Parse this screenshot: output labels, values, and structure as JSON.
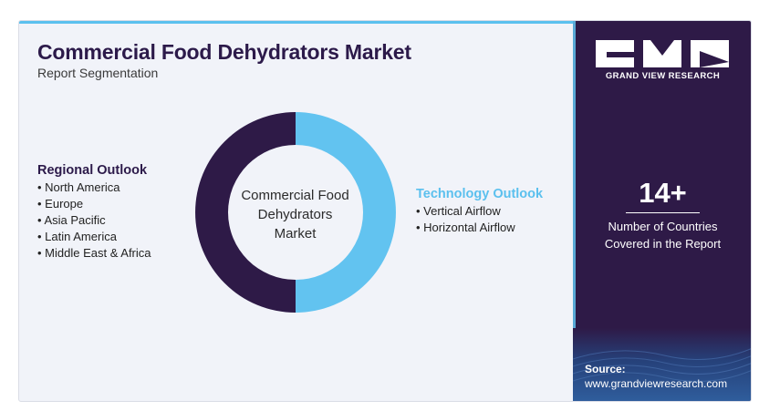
{
  "header": {
    "title": "Commercial Food Dehydrators Market",
    "subtitle": "Report Segmentation"
  },
  "regional": {
    "heading": "Regional Outlook",
    "items": [
      "North America",
      "Europe",
      "Asia Pacific",
      "Latin America",
      "Middle East & Africa"
    ]
  },
  "technology": {
    "heading": "Technology Outlook",
    "items": [
      "Vertical Airflow",
      "Horizontal Airflow"
    ]
  },
  "donut": {
    "center_label": [
      "Commercial Food",
      "Dehydrators",
      "Market"
    ],
    "segments": [
      {
        "name": "Technology Outlook",
        "fraction": 0.5,
        "color": "#62c3f0"
      },
      {
        "name": "Regional Outlook",
        "fraction": 0.5,
        "color": "#2e1a47"
      }
    ]
  },
  "sidebar": {
    "brand": "GRAND VIEW RESEARCH",
    "stat_number": "14+",
    "stat_desc_line1": "Number of Countries",
    "stat_desc_line2": "Covered in the Report",
    "source_label": "Source:",
    "source_url": "www.grandviewresearch.com"
  },
  "colors": {
    "dark_purple": "#2e1a47",
    "accent_blue": "#5bc0ee",
    "background": "#f1f3f9"
  }
}
